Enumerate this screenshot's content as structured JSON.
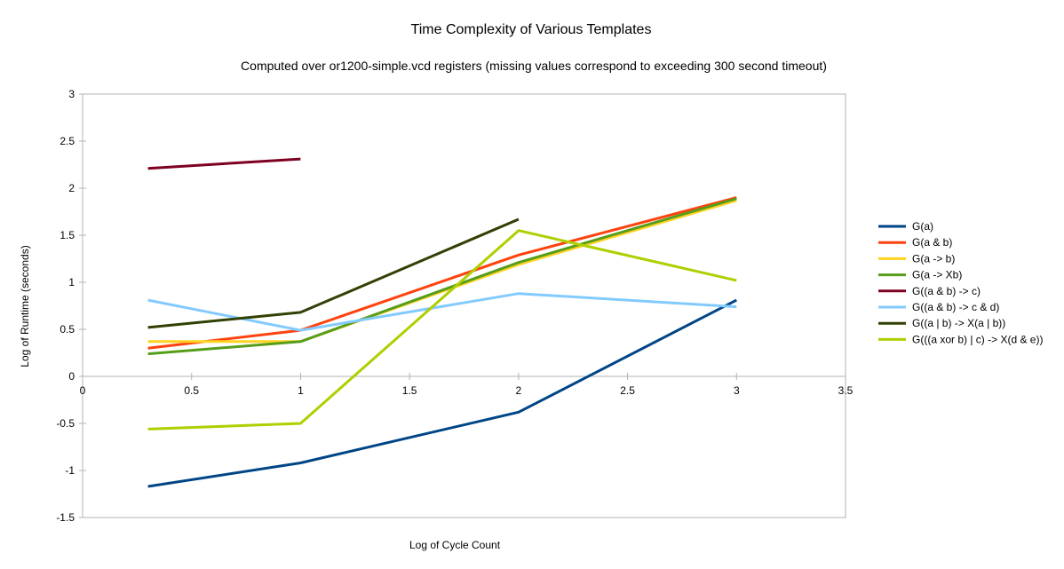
{
  "chart_data": {
    "type": "line",
    "title": "Time Complexity of Various Templates",
    "subtitle": "Computed over or1200-simple.vcd registers (missing values correspond to exceeding 300 second timeout)",
    "xlabel": "Log of Cycle Count",
    "ylabel": "Log of Runtime (seconds)",
    "xlim": [
      0,
      3.5
    ],
    "ylim": [
      -1.5,
      3
    ],
    "x_ticks": [
      "0",
      "0.5",
      "1",
      "1.5",
      "2",
      "2.5",
      "3",
      "3.5"
    ],
    "y_ticks": [
      "3",
      "2.5",
      "2",
      "1.5",
      "1",
      "0.5",
      "0",
      "-0.5",
      "-1",
      "-1.5"
    ],
    "grid": false,
    "legend_position": "right",
    "series": [
      {
        "name": "G(a)",
        "color": "#004586",
        "points": [
          [
            0.3,
            -1.17
          ],
          [
            1,
            -0.92
          ],
          [
            2,
            -0.38
          ],
          [
            3,
            0.81
          ]
        ]
      },
      {
        "name": "G(a & b)",
        "color": "#ff420e",
        "points": [
          [
            0.3,
            0.3
          ],
          [
            1,
            0.49
          ],
          [
            2,
            1.29
          ],
          [
            3,
            1.9
          ]
        ]
      },
      {
        "name": "G(a -> b)",
        "color": "#ffd320",
        "points": [
          [
            0.3,
            0.37
          ],
          [
            1,
            0.37
          ],
          [
            2,
            1.19
          ],
          [
            3,
            1.87
          ]
        ]
      },
      {
        "name": "G(a -> Xb)",
        "color": "#579d1c",
        "points": [
          [
            0.3,
            0.24
          ],
          [
            1,
            0.37
          ],
          [
            2,
            1.21
          ],
          [
            3,
            1.89
          ]
        ]
      },
      {
        "name": "G((a & b) -> c)",
        "color": "#7e0021",
        "points": [
          [
            0.3,
            2.21
          ],
          [
            1,
            2.31
          ]
        ]
      },
      {
        "name": "G((a & b) -> c & d)",
        "color": "#83caff",
        "points": [
          [
            0.3,
            0.81
          ],
          [
            1,
            0.49
          ],
          [
            2,
            0.88
          ],
          [
            3,
            0.74
          ]
        ]
      },
      {
        "name": "G((a | b) -> X(a | b))",
        "color": "#314004",
        "points": [
          [
            0.3,
            0.52
          ],
          [
            1,
            0.68
          ],
          [
            2,
            1.67
          ]
        ]
      },
      {
        "name": "G(((a xor b) | c) -> X(d & e))",
        "color": "#aecf00",
        "points": [
          [
            0.3,
            -0.56
          ],
          [
            1,
            -0.5
          ],
          [
            2,
            1.55
          ],
          [
            3,
            1.02
          ]
        ]
      }
    ]
  }
}
